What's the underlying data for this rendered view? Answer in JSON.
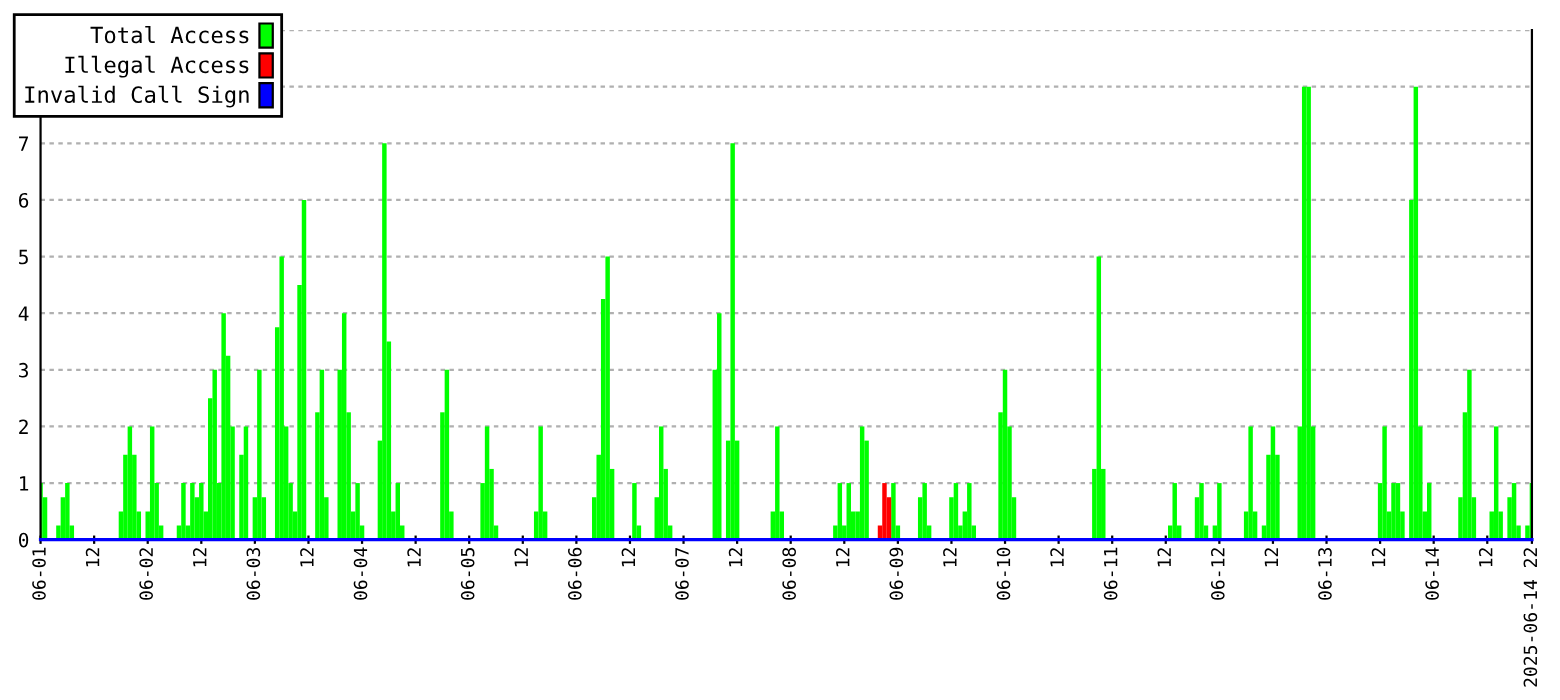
{
  "chart_data": {
    "type": "bar",
    "xlim": [
      "2025-06-01T00:00",
      "2025-06-14T22:00"
    ],
    "xticks": [
      {
        "value": "2025-06-01T00:00",
        "label": "06-01"
      },
      {
        "value": "2025-06-01T12:00",
        "label": "12"
      },
      {
        "value": "2025-06-02T00:00",
        "label": "06-02"
      },
      {
        "value": "2025-06-02T12:00",
        "label": "12"
      },
      {
        "value": "2025-06-03T00:00",
        "label": "06-03"
      },
      {
        "value": "2025-06-03T12:00",
        "label": "12"
      },
      {
        "value": "2025-06-04T00:00",
        "label": "06-04"
      },
      {
        "value": "2025-06-04T12:00",
        "label": "12"
      },
      {
        "value": "2025-06-05T00:00",
        "label": "06-05"
      },
      {
        "value": "2025-06-05T12:00",
        "label": "12"
      },
      {
        "value": "2025-06-06T00:00",
        "label": "06-06"
      },
      {
        "value": "2025-06-06T12:00",
        "label": "12"
      },
      {
        "value": "2025-06-07T00:00",
        "label": "06-07"
      },
      {
        "value": "2025-06-07T12:00",
        "label": "12"
      },
      {
        "value": "2025-06-08T00:00",
        "label": "06-08"
      },
      {
        "value": "2025-06-08T12:00",
        "label": "12"
      },
      {
        "value": "2025-06-09T00:00",
        "label": "06-09"
      },
      {
        "value": "2025-06-09T12:00",
        "label": "12"
      },
      {
        "value": "2025-06-10T00:00",
        "label": "06-10"
      },
      {
        "value": "2025-06-10T12:00",
        "label": "12"
      },
      {
        "value": "2025-06-11T00:00",
        "label": "06-11"
      },
      {
        "value": "2025-06-11T12:00",
        "label": "12"
      },
      {
        "value": "2025-06-12T00:00",
        "label": "06-12"
      },
      {
        "value": "2025-06-12T12:00",
        "label": "12"
      },
      {
        "value": "2025-06-13T00:00",
        "label": "06-13"
      },
      {
        "value": "2025-06-13T12:00",
        "label": "12"
      },
      {
        "value": "2025-06-14T00:00",
        "label": "06-14"
      },
      {
        "value": "2025-06-14T12:00",
        "label": "12"
      },
      {
        "value": "2025-06-14T22:00",
        "label": "2025-06-14 22"
      }
    ],
    "ylim": [
      0,
      9
    ],
    "yticks": [
      0,
      1,
      2,
      3,
      4,
      5,
      6,
      7,
      {
        "value": 8,
        "label": null
      },
      {
        "value": 9,
        "label": null
      }
    ],
    "grid": "y",
    "legend": "top left",
    "series": [
      {
        "name": "Total Access",
        "color": "#00ff00",
        "x": [
          "2025-06-01T00:00",
          "2025-06-01T01:00",
          "2025-06-01T04:00",
          "2025-06-01T05:00",
          "2025-06-01T06:00",
          "2025-06-01T07:00",
          "2025-06-01T18:00",
          "2025-06-01T19:00",
          "2025-06-01T20:00",
          "2025-06-01T21:00",
          "2025-06-01T22:00",
          "2025-06-02T00:00",
          "2025-06-02T01:00",
          "2025-06-02T02:00",
          "2025-06-02T03:00",
          "2025-06-02T07:00",
          "2025-06-02T08:00",
          "2025-06-02T09:00",
          "2025-06-02T10:00",
          "2025-06-02T11:00",
          "2025-06-02T12:00",
          "2025-06-02T13:00",
          "2025-06-02T14:00",
          "2025-06-02T15:00",
          "2025-06-02T16:00",
          "2025-06-02T17:00",
          "2025-06-02T18:00",
          "2025-06-02T19:00",
          "2025-06-02T21:00",
          "2025-06-02T22:00",
          "2025-06-03T00:00",
          "2025-06-03T01:00",
          "2025-06-03T02:00",
          "2025-06-03T05:00",
          "2025-06-03T06:00",
          "2025-06-03T07:00",
          "2025-06-03T08:00",
          "2025-06-03T09:00",
          "2025-06-03T10:00",
          "2025-06-03T11:00",
          "2025-06-03T14:00",
          "2025-06-03T15:00",
          "2025-06-03T16:00",
          "2025-06-03T19:00",
          "2025-06-03T20:00",
          "2025-06-03T21:00",
          "2025-06-03T22:00",
          "2025-06-03T23:00",
          "2025-06-04T00:00",
          "2025-06-04T04:00",
          "2025-06-04T05:00",
          "2025-06-04T06:00",
          "2025-06-04T07:00",
          "2025-06-04T08:00",
          "2025-06-04T09:00",
          "2025-06-04T18:00",
          "2025-06-04T19:00",
          "2025-06-04T20:00",
          "2025-06-05T03:00",
          "2025-06-05T04:00",
          "2025-06-05T05:00",
          "2025-06-05T06:00",
          "2025-06-05T15:00",
          "2025-06-05T16:00",
          "2025-06-05T17:00",
          "2025-06-06T04:00",
          "2025-06-06T05:00",
          "2025-06-06T06:00",
          "2025-06-06T07:00",
          "2025-06-06T08:00",
          "2025-06-06T13:00",
          "2025-06-06T14:00",
          "2025-06-06T18:00",
          "2025-06-06T19:00",
          "2025-06-06T20:00",
          "2025-06-06T21:00",
          "2025-06-07T07:00",
          "2025-06-07T08:00",
          "2025-06-07T10:00",
          "2025-06-07T11:00",
          "2025-06-07T12:00",
          "2025-06-07T20:00",
          "2025-06-07T21:00",
          "2025-06-07T22:00",
          "2025-06-08T10:00",
          "2025-06-08T11:00",
          "2025-06-08T12:00",
          "2025-06-08T13:00",
          "2025-06-08T14:00",
          "2025-06-08T15:00",
          "2025-06-08T16:00",
          "2025-06-08T17:00",
          "2025-06-08T23:00",
          "2025-06-09T00:00",
          "2025-06-09T05:00",
          "2025-06-09T06:00",
          "2025-06-09T07:00",
          "2025-06-09T12:00",
          "2025-06-09T13:00",
          "2025-06-09T14:00",
          "2025-06-09T15:00",
          "2025-06-09T16:00",
          "2025-06-09T17:00",
          "2025-06-09T23:00",
          "2025-06-10T00:00",
          "2025-06-10T01:00",
          "2025-06-10T02:00",
          "2025-06-10T20:00",
          "2025-06-10T21:00",
          "2025-06-10T22:00",
          "2025-06-11T13:00",
          "2025-06-11T14:00",
          "2025-06-11T15:00",
          "2025-06-11T19:00",
          "2025-06-11T20:00",
          "2025-06-11T21:00",
          "2025-06-11T23:00",
          "2025-06-12T00:00",
          "2025-06-12T06:00",
          "2025-06-12T07:00",
          "2025-06-12T08:00",
          "2025-06-12T10:00",
          "2025-06-12T11:00",
          "2025-06-12T12:00",
          "2025-06-12T13:00",
          "2025-06-12T18:00",
          "2025-06-12T19:00",
          "2025-06-12T20:00",
          "2025-06-12T21:00",
          "2025-06-13T12:00",
          "2025-06-13T13:00",
          "2025-06-13T14:00",
          "2025-06-13T15:00",
          "2025-06-13T16:00",
          "2025-06-13T17:00",
          "2025-06-13T19:00",
          "2025-06-13T20:00",
          "2025-06-13T21:00",
          "2025-06-13T22:00",
          "2025-06-13T23:00",
          "2025-06-14T06:00",
          "2025-06-14T07:00",
          "2025-06-14T08:00",
          "2025-06-14T09:00",
          "2025-06-14T13:00",
          "2025-06-14T14:00",
          "2025-06-14T15:00",
          "2025-06-14T17:00",
          "2025-06-14T18:00",
          "2025-06-14T19:00",
          "2025-06-14T21:00",
          "2025-06-14T22:00"
        ],
        "values": [
          1,
          0.75,
          0.25,
          0.75,
          1,
          0.25,
          0.5,
          1.5,
          2,
          1.5,
          0.5,
          0.5,
          2,
          1,
          0.25,
          0.25,
          1,
          0.25,
          1,
          0.75,
          1,
          0.5,
          2.5,
          3,
          1,
          4,
          3.25,
          2,
          1.5,
          2,
          0.75,
          3,
          0.75,
          3.75,
          5,
          2,
          1,
          0.5,
          4.5,
          6,
          2.25,
          3,
          0.75,
          3,
          4,
          2.25,
          0.5,
          1,
          0.25,
          1.75,
          7,
          3.5,
          0.5,
          1,
          0.25,
          2.25,
          3,
          0.5,
          1,
          2,
          1.25,
          0.25,
          0.5,
          2,
          0.5,
          0.75,
          1.5,
          4.25,
          5,
          1.25,
          1,
          0.25,
          0.75,
          2,
          1.25,
          0.25,
          3,
          4,
          1.75,
          7,
          1.75,
          0.5,
          2,
          0.5,
          0.25,
          1,
          0.25,
          1,
          0.5,
          0.5,
          2,
          1.75,
          1,
          0.25,
          0.75,
          1,
          0.25,
          0.75,
          1,
          0.25,
          0.5,
          1,
          0.25,
          2.25,
          3,
          2,
          0.75,
          1.25,
          5,
          1.25,
          0.25,
          1,
          0.25,
          0.75,
          1,
          0.25,
          0.25,
          1,
          0.5,
          2,
          0.5,
          0.25,
          1.5,
          2,
          1.5,
          2,
          8,
          8,
          2,
          1,
          2,
          0.5,
          1,
          1,
          0.5,
          6,
          8,
          2,
          0.5,
          1,
          0.75,
          2.25,
          3,
          0.75,
          0.5,
          2,
          0.5,
          0.75,
          1,
          0.25,
          0.25,
          1
        ]
      },
      {
        "name": "Illegal Access",
        "color": "#ff0000",
        "x": [
          "2025-06-08T20:00",
          "2025-06-08T21:00",
          "2025-06-08T22:00"
        ],
        "values": [
          0.25,
          1,
          0.75
        ]
      },
      {
        "name": "Invalid Call Sign",
        "type": "line",
        "color": "#0000ff",
        "x": [
          "2025-06-01T00:00",
          "2025-06-14T22:00"
        ],
        "values": [
          0,
          0
        ]
      }
    ]
  }
}
